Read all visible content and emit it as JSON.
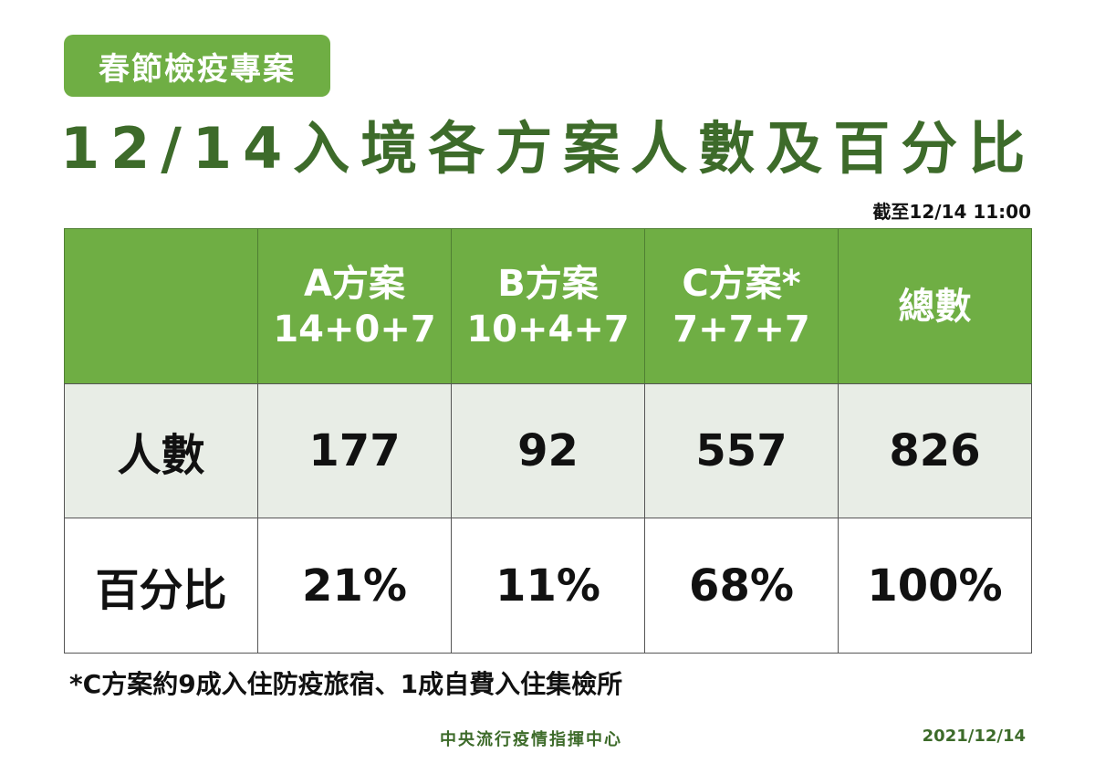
{
  "badge": "春節檢疫專案",
  "title": "12/14入境各方案人數及百分比",
  "as_of": "截至12/14 11:00",
  "table": {
    "columns": [
      {
        "name": "A方案",
        "schedule": "14+0+7"
      },
      {
        "name": "B方案",
        "schedule": "10+4+7"
      },
      {
        "name": "C方案*",
        "schedule": "7+7+7"
      },
      {
        "name": "總數"
      }
    ],
    "rows": [
      {
        "label": "人數",
        "cells": [
          "177",
          "92",
          "557",
          "826"
        ]
      },
      {
        "label": "百分比",
        "cells": [
          "21%",
          "11%",
          "68%",
          "100%"
        ]
      }
    ]
  },
  "footnote": "*C方案約9成入住防疫旅宿、1成自費入住集檢所",
  "footer": {
    "org": "中央流行疫情指揮中心",
    "date": "2021/12/14"
  }
}
